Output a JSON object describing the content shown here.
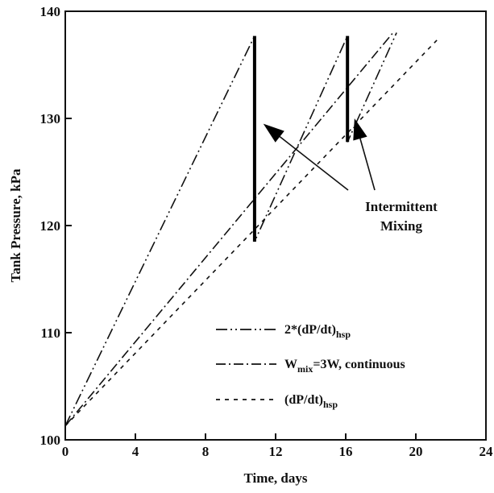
{
  "chart_data": {
    "type": "line",
    "xlabel": "Time, days",
    "ylabel": "Tank Pressure, kPa",
    "xlim": [
      0,
      24
    ],
    "ylim": [
      100,
      140
    ],
    "xticks": [
      0,
      4,
      8,
      12,
      16,
      20,
      24
    ],
    "yticks": [
      100,
      110,
      120,
      130,
      140
    ],
    "grid": false,
    "legend_position": "bottom-center",
    "series": [
      {
        "name": "2*(dP/dt)hsp",
        "legend_main": "2*(dP/dt)",
        "legend_sub": "hsp",
        "style": "dash-dot-dot",
        "x": [
          0,
          10.8,
          10.8,
          16.1,
          16.1,
          18.9
        ],
        "y": [
          101.3,
          137.7,
          118.5,
          137.7,
          127.8,
          138.0
        ]
      },
      {
        "name": "Wmix=3W, continuous",
        "legend_main": "W",
        "legend_sub": "mix",
        "legend_tail": "=3W, continuous",
        "style": "dash-dot",
        "x": [
          0,
          18.7
        ],
        "y": [
          101.3,
          138.0
        ]
      },
      {
        "name": "(dP/dt)hsp",
        "legend_main": "(dP/dt)",
        "legend_sub": "hsp",
        "style": "dotted",
        "x": [
          0,
          21.2
        ],
        "y": [
          101.3,
          137.3
        ]
      }
    ],
    "mixing_drops": [
      {
        "x": 10.8,
        "y_top": 137.7,
        "y_bottom": 118.5
      },
      {
        "x": 16.1,
        "y_top": 137.7,
        "y_bottom": 127.8
      }
    ],
    "annotation": {
      "lines": [
        "Intermittent",
        "Mixing"
      ],
      "arrow_targets": [
        {
          "x": 11.3,
          "y": 129.5
        },
        {
          "x": 16.5,
          "y": 130.0
        }
      ]
    }
  }
}
